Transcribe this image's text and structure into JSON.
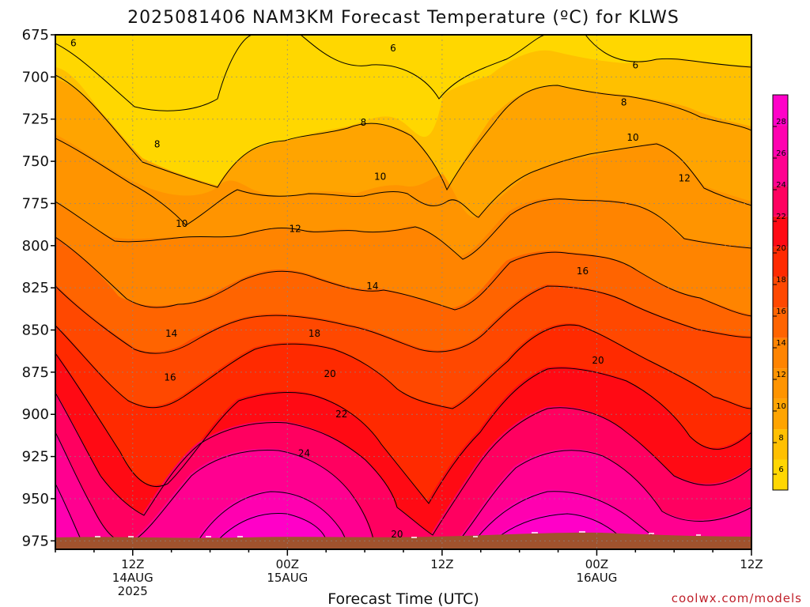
{
  "chart_data": {
    "type": "heatmap",
    "title": "2025081406 NAM3KM Forecast Temperature (ºC) for KLWS",
    "xlabel": "Forecast Time (UTC)",
    "ylabel": "",
    "credit": "coolwx.com/models",
    "y_levels": [
      675,
      700,
      725,
      750,
      775,
      800,
      825,
      850,
      875,
      900,
      925,
      950,
      975
    ],
    "y_range_hpa": [
      675,
      980
    ],
    "y_tick_labels": [
      "675",
      "700",
      "725",
      "750",
      "775",
      "800",
      "825",
      "850",
      "875",
      "900",
      "925",
      "950",
      "975"
    ],
    "x_hours": [
      0,
      3,
      6,
      9,
      12,
      15,
      18,
      21,
      24,
      27,
      30,
      33,
      36,
      39,
      42,
      45,
      48,
      51,
      54
    ],
    "x_range_hours": [
      0,
      54
    ],
    "x_ticks": [
      {
        "hour": 6,
        "lines": [
          "12Z",
          "14AUG",
          "2025"
        ]
      },
      {
        "hour": 18,
        "lines": [
          "00Z",
          "15AUG"
        ]
      },
      {
        "hour": 30,
        "lines": [
          "12Z"
        ]
      },
      {
        "hour": 42,
        "lines": [
          "00Z",
          "16AUG"
        ]
      },
      {
        "hour": 54,
        "lines": [
          "12Z"
        ]
      }
    ],
    "grid": true,
    "contour_interval_c": 2,
    "contour_labels": [
      {
        "value": "6",
        "hour": 1.4,
        "hpa": 680
      },
      {
        "value": "6",
        "hour": 26.2,
        "hpa": 683
      },
      {
        "value": "6",
        "hour": 45.0,
        "hpa": 693
      },
      {
        "value": "8",
        "hour": 7.9,
        "hpa": 740
      },
      {
        "value": "8",
        "hour": 23.9,
        "hpa": 727
      },
      {
        "value": "8",
        "hour": 44.1,
        "hpa": 715
      },
      {
        "value": "10",
        "hour": 9.8,
        "hpa": 787
      },
      {
        "value": "10",
        "hour": 25.2,
        "hpa": 759
      },
      {
        "value": "10",
        "hour": 44.8,
        "hpa": 736
      },
      {
        "value": "12",
        "hour": 18.6,
        "hpa": 790
      },
      {
        "value": "12",
        "hour": 48.8,
        "hpa": 760
      },
      {
        "value": "14",
        "hour": 24.6,
        "hpa": 824
      },
      {
        "value": "14",
        "hour": 9.0,
        "hpa": 852
      },
      {
        "value": "16",
        "hour": 8.9,
        "hpa": 878
      },
      {
        "value": "16",
        "hour": 40.9,
        "hpa": 815
      },
      {
        "value": "18",
        "hour": 20.1,
        "hpa": 852
      },
      {
        "value": "20",
        "hour": 21.3,
        "hpa": 876
      },
      {
        "value": "20",
        "hour": 42.1,
        "hpa": 868
      },
      {
        "value": "20",
        "hour": 26.5,
        "hpa": 971
      },
      {
        "value": "22",
        "hour": 22.2,
        "hpa": 900
      },
      {
        "value": "24",
        "hour": 19.3,
        "hpa": 923
      }
    ],
    "colorbar": {
      "ticks": [
        6,
        8,
        10,
        12,
        14,
        16,
        18,
        20,
        22,
        24,
        26,
        28
      ],
      "range": [
        5,
        30
      ],
      "colors": [
        "#ffd700",
        "#ffc000",
        "#ffa400",
        "#ff9400",
        "#ff8400",
        "#ff6400",
        "#ff4800",
        "#ff2a00",
        "#ff0a14",
        "#ff0060",
        "#ff0090",
        "#ff00b0",
        "#ff00c8"
      ]
    },
    "ground_color": "#a0522d"
  }
}
